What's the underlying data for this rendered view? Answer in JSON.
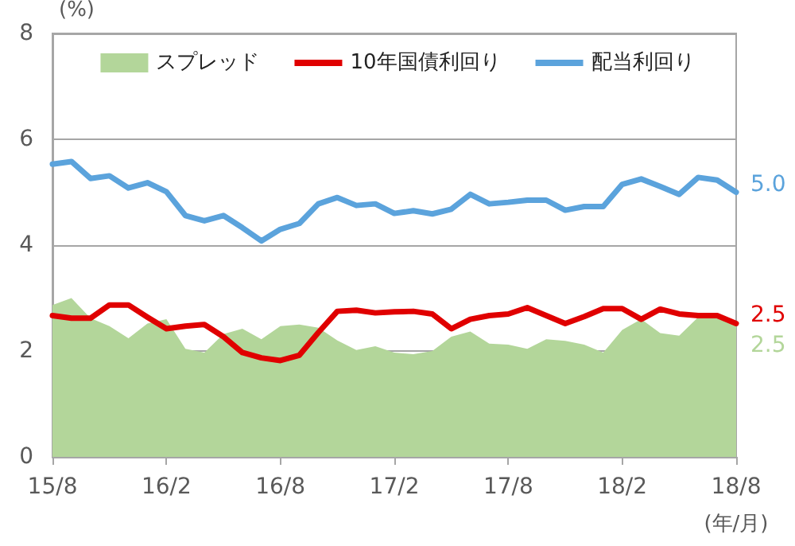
{
  "chart_data": {
    "type": "line",
    "ylabel": "(%)",
    "xlabel": "(年/月)",
    "categories": [
      "15/8",
      null,
      null,
      null,
      null,
      null,
      "16/2",
      null,
      null,
      null,
      null,
      null,
      "16/8",
      null,
      null,
      null,
      null,
      null,
      "17/2",
      null,
      null,
      null,
      null,
      null,
      "17/8",
      null,
      null,
      null,
      null,
      null,
      "18/2",
      null,
      null,
      null,
      null,
      null,
      "18/8"
    ],
    "series": [
      {
        "name": "スプレッド",
        "type": "area",
        "color": "#b3d69a",
        "values": [
          2.87,
          3.0,
          2.62,
          2.47,
          2.24,
          2.52,
          2.6,
          2.04,
          1.97,
          2.32,
          2.42,
          2.22,
          2.47,
          2.5,
          2.44,
          2.2,
          2.02,
          2.09,
          1.97,
          1.94,
          2.0,
          2.27,
          2.37,
          2.14,
          2.12,
          2.04,
          2.22,
          2.19,
          2.12,
          1.97,
          2.4,
          2.6,
          2.34,
          2.29,
          2.64,
          2.64,
          2.52
        ],
        "value_labels": [
          null,
          null,
          null,
          null,
          null,
          null,
          null,
          null,
          null,
          null,
          null,
          null,
          null,
          null,
          null,
          null,
          null,
          null,
          null,
          null,
          null,
          null,
          null,
          null,
          null,
          null,
          null,
          null,
          null,
          null,
          null,
          null,
          null,
          null,
          null,
          null,
          "2.5"
        ]
      },
      {
        "name": "10年国債利回り",
        "color": "#e00000",
        "values": [
          2.67,
          2.62,
          2.62,
          2.87,
          2.87,
          2.64,
          2.42,
          2.47,
          2.5,
          2.27,
          1.97,
          1.87,
          1.82,
          1.92,
          2.35,
          2.75,
          2.77,
          2.72,
          2.74,
          2.75,
          2.7,
          2.42,
          2.6,
          2.67,
          2.7,
          2.82,
          2.67,
          2.52,
          2.65,
          2.8,
          2.8,
          2.6,
          2.79,
          2.7,
          2.67,
          2.67,
          2.52
        ],
        "value_labels": [
          null,
          null,
          null,
          null,
          null,
          null,
          null,
          null,
          null,
          null,
          null,
          null,
          null,
          null,
          null,
          null,
          null,
          null,
          null,
          null,
          null,
          null,
          null,
          null,
          null,
          null,
          null,
          null,
          null,
          null,
          null,
          null,
          null,
          null,
          null,
          null,
          "2.5"
        ]
      },
      {
        "name": "配当利回り",
        "color": "#5ba3dc",
        "values": [
          5.53,
          5.58,
          5.26,
          5.31,
          5.08,
          5.18,
          5.01,
          4.56,
          4.46,
          4.56,
          4.33,
          4.08,
          4.3,
          4.41,
          4.78,
          4.9,
          4.75,
          4.78,
          4.6,
          4.65,
          4.59,
          4.68,
          4.96,
          4.78,
          4.81,
          4.85,
          4.85,
          4.66,
          4.73,
          4.73,
          5.15,
          5.25,
          5.11,
          4.96,
          5.28,
          5.23,
          5.0
        ],
        "value_labels": [
          null,
          null,
          null,
          null,
          null,
          null,
          null,
          null,
          null,
          null,
          null,
          null,
          null,
          null,
          null,
          null,
          null,
          null,
          null,
          null,
          null,
          null,
          null,
          null,
          null,
          null,
          null,
          null,
          null,
          null,
          null,
          null,
          null,
          null,
          null,
          null,
          "5.0"
        ]
      }
    ],
    "ylim": [
      0,
      8
    ],
    "yticks": [
      0,
      2,
      4,
      6,
      8
    ],
    "grid": "y",
    "legend": "top",
    "marker": "none",
    "line_style": "solid"
  }
}
